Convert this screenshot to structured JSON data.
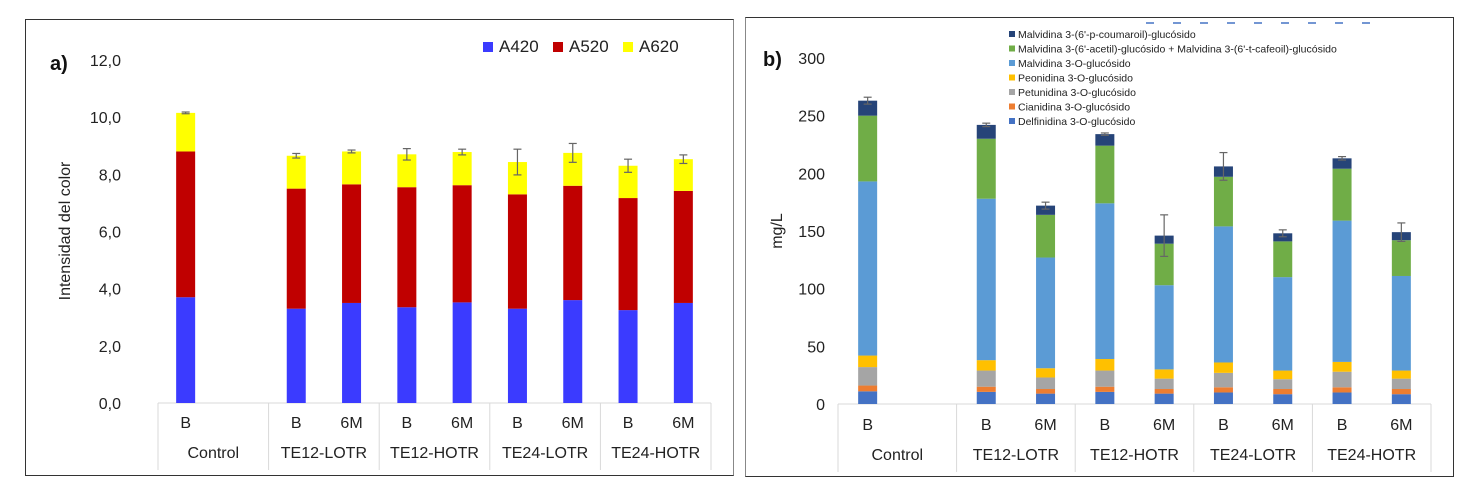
{
  "chart_data": [
    {
      "id": "a",
      "type": "bar",
      "stacked": true,
      "panel_label": "a)",
      "title": "",
      "xlabel": "",
      "ylabel": "Intensidad del color",
      "ylim": [
        0,
        12
      ],
      "yticks": [
        "0,0",
        "2,0",
        "4,0",
        "6,0",
        "8,0",
        "10,0",
        "12,0"
      ],
      "ytick_values": [
        0,
        2,
        4,
        6,
        8,
        10,
        12
      ],
      "grid": false,
      "legend_position": "top-right",
      "groups": [
        {
          "name": "Control",
          "bars": [
            "B"
          ]
        },
        {
          "name": "TE12-LOTR",
          "bars": [
            "B",
            "6M"
          ]
        },
        {
          "name": "TE12-HOTR",
          "bars": [
            "B",
            "6M"
          ]
        },
        {
          "name": "TE24-LOTR",
          "bars": [
            "B",
            "6M"
          ]
        },
        {
          "name": "TE24-HOTR",
          "bars": [
            "B",
            "6M"
          ]
        }
      ],
      "categories": [
        "Control B",
        "TE12-LOTR B",
        "TE12-LOTR 6M",
        "TE12-HOTR B",
        "TE12-HOTR 6M",
        "TE24-LOTR B",
        "TE24-LOTR 6M",
        "TE24-HOTR B",
        "TE24-HOTR 6M"
      ],
      "series": [
        {
          "name": "A420",
          "color": "#3b3bff",
          "values": [
            3.7,
            3.3,
            3.5,
            3.35,
            3.52,
            3.3,
            3.6,
            3.25,
            3.5
          ]
        },
        {
          "name": "A520",
          "color": "#c00000",
          "values": [
            5.1,
            4.2,
            4.15,
            4.2,
            4.1,
            4.0,
            4.0,
            3.92,
            3.92
          ]
        },
        {
          "name": "A620",
          "color": "#ffff00",
          "values": [
            1.35,
            1.15,
            1.15,
            1.15,
            1.16,
            1.13,
            1.15,
            1.13,
            1.11
          ]
        }
      ],
      "error_bars": [
        0.03,
        0.08,
        0.05,
        0.2,
        0.1,
        0.45,
        0.33,
        0.23,
        0.15
      ]
    },
    {
      "id": "b",
      "type": "bar",
      "stacked": true,
      "panel_label": "b)",
      "title": "",
      "xlabel": "",
      "ylabel": "mg/L",
      "ylim": [
        0,
        300
      ],
      "yticks": [
        "0",
        "50",
        "100",
        "150",
        "200",
        "250",
        "300"
      ],
      "ytick_values": [
        0,
        50,
        100,
        150,
        200,
        250,
        300
      ],
      "grid": false,
      "legend_position": "top-right",
      "groups": [
        {
          "name": "Control",
          "bars": [
            "B"
          ]
        },
        {
          "name": "TE12-LOTR",
          "bars": [
            "B",
            "6M"
          ]
        },
        {
          "name": "TE12-HOTR",
          "bars": [
            "B",
            "6M"
          ]
        },
        {
          "name": "TE24-LOTR",
          "bars": [
            "B",
            "6M"
          ]
        },
        {
          "name": "TE24-HOTR",
          "bars": [
            "B",
            "6M"
          ]
        }
      ],
      "categories": [
        "Control B",
        "TE12-LOTR B",
        "TE12-LOTR 6M",
        "TE12-HOTR B",
        "TE12-HOTR 6M",
        "TE24-LOTR B",
        "TE24-LOTR 6M",
        "TE24-HOTR B",
        "TE24-HOTR 6M"
      ],
      "series": [
        {
          "name": "Delfinidina 3-O-glucósido",
          "color": "#4472c4",
          "values": [
            11,
            10.5,
            9,
            10.5,
            9,
            10,
            8.5,
            10,
            8.5
          ]
        },
        {
          "name": "Cianidina 3-O-glucósido",
          "color": "#ed7d31",
          "values": [
            5,
            4.5,
            4,
            4.5,
            4,
            4.5,
            4.5,
            4.5,
            4.5
          ]
        },
        {
          "name": "Petunidina 3-O-glucósido",
          "color": "#a5a5a5",
          "values": [
            16,
            14,
            10,
            14,
            9,
            12.5,
            8.5,
            13.5,
            9
          ]
        },
        {
          "name": "Peonidina 3-O-glucósido",
          "color": "#ffc000",
          "values": [
            10,
            9,
            8,
            10,
            8,
            9,
            7.5,
            8.5,
            7
          ]
        },
        {
          "name": "Malvidina 3-O-glucósido",
          "color": "#5b9bd5",
          "values": [
            151,
            140,
            96,
            135,
            73,
            118,
            81,
            122.5,
            82
          ]
        },
        {
          "name": "Malvidina 3-(6'-acetil)-glucósido + Malvidina 3-(6'-t-cafeoil)-glucósido",
          "color": "#70ad47",
          "values": [
            57,
            52,
            37,
            50,
            36,
            43,
            31,
            45,
            31
          ]
        },
        {
          "name": "Malvidina 3-(6'-p-coumaroil)-glucósido",
          "color": "#264478",
          "values": [
            13,
            12,
            8,
            10,
            7,
            9,
            7,
            9,
            7
          ]
        }
      ],
      "legend_order": [
        "Malvidina 3-(6'-p-coumaroil)-glucósido",
        "Malvidina 3-(6'-acetil)-glucósido + Malvidina 3-(6'-t-cafeoil)-glucósido",
        "Malvidina 3-O-glucósido",
        "Peonidina 3-O-glucósido",
        "Petunidina 3-O-glucósido",
        "Cianidina 3-O-glucósido",
        "Delfinidina 3-O-glucósido"
      ],
      "error_bars": [
        3,
        1.5,
        3,
        1,
        18,
        12,
        3,
        1.5,
        8
      ]
    }
  ]
}
